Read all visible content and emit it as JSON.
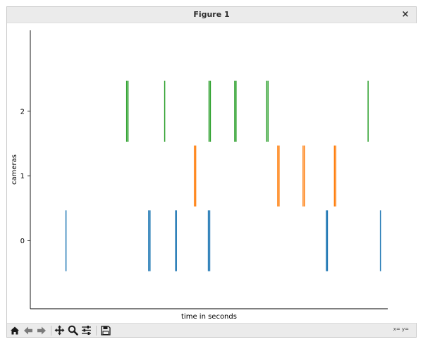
{
  "window": {
    "title": "Figure 1",
    "close_glyph": "×"
  },
  "toolbar": {
    "buttons": [
      {
        "name": "home-button",
        "icon": "home-icon"
      },
      {
        "name": "back-button",
        "icon": "arrow-left-icon"
      },
      {
        "name": "forward-button",
        "icon": "arrow-right-icon"
      },
      {
        "name": "pan-button",
        "icon": "move-icon"
      },
      {
        "name": "zoom-button",
        "icon": "magnifier-icon"
      },
      {
        "name": "subplots-button",
        "icon": "sliders-icon"
      },
      {
        "name": "save-button",
        "icon": "floppy-disk-icon"
      }
    ],
    "coords_text": "x= y="
  },
  "chart_data": {
    "type": "eventplot",
    "title": "",
    "xlabel": "time in seconds",
    "ylabel": "cameras",
    "yticks": [
      "0",
      "1",
      "2"
    ],
    "ylim": [
      -1.05,
      3.25
    ],
    "xlim": [
      0,
      1
    ],
    "x_tick_labels_shown": false,
    "grid": false,
    "legend": "none",
    "series": [
      {
        "lane": 0,
        "color": "#1f77b4",
        "events": [
          0.052,
          0.3,
          0.304,
          0.381,
          0.383,
          0.479,
          0.483,
          0.833,
          0.836,
          0.995
        ]
      },
      {
        "lane": 1,
        "color": "#ff7f0e",
        "events": [
          0.437,
          0.441,
          0.687,
          0.691,
          0.763,
          0.767,
          0.857,
          0.861
        ]
      },
      {
        "lane": 2,
        "color": "#2ca02c",
        "events": [
          0.234,
          0.238,
          0.348,
          0.481,
          0.485,
          0.558,
          0.562,
          0.654,
          0.658,
          0.958
        ]
      }
    ]
  }
}
